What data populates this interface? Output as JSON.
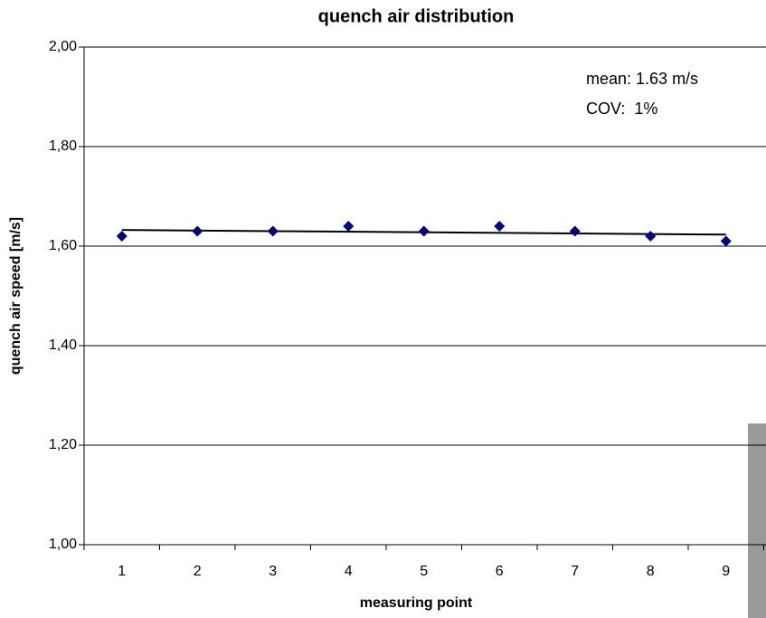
{
  "chart_data": {
    "type": "scatter",
    "title": "quench air distribution",
    "xlabel": "measuring point",
    "ylabel": "quench air speed [m/s]",
    "categories": [
      "1",
      "2",
      "3",
      "4",
      "5",
      "6",
      "7",
      "8",
      "9"
    ],
    "series": [
      {
        "color": "#000080",
        "values": [
          1.62,
          1.63,
          1.63,
          1.64,
          1.63,
          1.64,
          1.63,
          1.62,
          1.61
        ]
      }
    ],
    "trendline": "linear",
    "ylim": [
      1.0,
      2.0
    ],
    "yticks": [
      {
        "value": 1.0,
        "label": "1,00"
      },
      {
        "value": 1.2,
        "label": "1,20"
      },
      {
        "value": 1.4,
        "label": "1,40"
      },
      {
        "value": 1.6,
        "label": "1,60"
      },
      {
        "value": 1.8,
        "label": "1,80"
      },
      {
        "value": 2.0,
        "label": "2,00"
      }
    ],
    "grid": true,
    "annotations": [
      "mean: 1.63 m/s",
      "COV:  1%"
    ]
  }
}
